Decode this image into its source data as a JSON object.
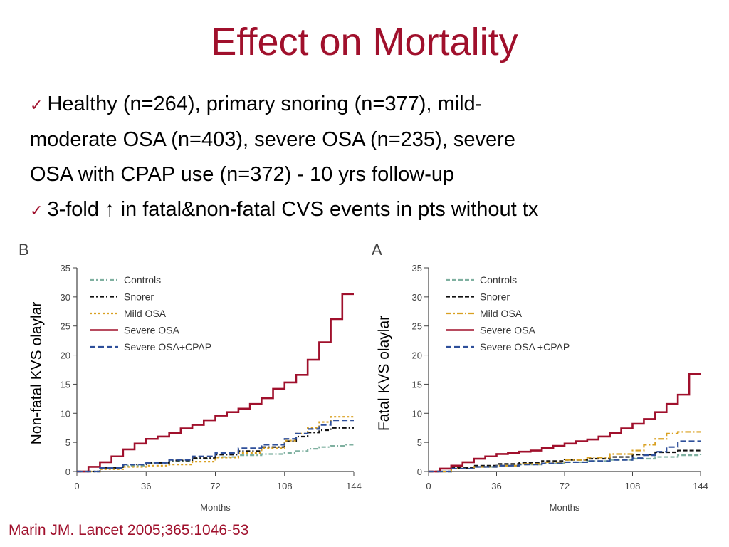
{
  "slide": {
    "title": "Effect on Mortality",
    "bullet1_check": "✓",
    "bullet1_line1": "Healthy (n=264), primary snoring (n=377), mild-",
    "bullet1_line2": "moderate OSA (n=403), severe OSA (n=235), severe",
    "bullet1_line3": "OSA with CPAP use (n=372) - 10 yrs follow-up",
    "bullet2_check": "✓",
    "bullet2_text": "3-fold ↑ in fatal&non-fatal CVS events in pts without tx",
    "citation": "Marin JM. Lancet 2005;365:1046-53"
  },
  "colors": {
    "title": "#a0102c",
    "controls": "#7fb0a0",
    "snorer": "#111111",
    "mild_osa": "#d9a020",
    "severe_osa": "#a0102c",
    "severe_osa_cpap": "#2e4f9a"
  },
  "chart_data": [
    {
      "panel": "B",
      "type": "line",
      "step": true,
      "ylabel": "Non-fatal KVS olaylar",
      "xlabel": "Months",
      "xlim": [
        0,
        144
      ],
      "ylim": [
        0,
        35
      ],
      "xticks": [
        0,
        36,
        72,
        108,
        144
      ],
      "yticks": [
        0,
        5,
        10,
        15,
        20,
        25,
        30,
        35
      ],
      "legend_position": "top-left",
      "series": [
        {
          "name": "Controls",
          "color": "#7fb0a0",
          "dash": "6,3,2,3",
          "points": [
            [
              0,
              0
            ],
            [
              12,
              0.5
            ],
            [
              24,
              1
            ],
            [
              36,
              1.4
            ],
            [
              48,
              1.8
            ],
            [
              60,
              2.2
            ],
            [
              72,
              2.5
            ],
            [
              84,
              2.8
            ],
            [
              96,
              3
            ],
            [
              108,
              3.2
            ],
            [
              114,
              3.5
            ],
            [
              120,
              3.9
            ],
            [
              126,
              4.2
            ],
            [
              132,
              4.4
            ],
            [
              140,
              4.6
            ],
            [
              144,
              4.6
            ]
          ]
        },
        {
          "name": "Snorer",
          "color": "#111111",
          "dash": "6,3,2,3",
          "points": [
            [
              0,
              0
            ],
            [
              12,
              0.6
            ],
            [
              24,
              1.2
            ],
            [
              36,
              1.5
            ],
            [
              48,
              1.9
            ],
            [
              60,
              2.3
            ],
            [
              72,
              2.9
            ],
            [
              84,
              3.5
            ],
            [
              96,
              4.2
            ],
            [
              108,
              5.2
            ],
            [
              114,
              6
            ],
            [
              120,
              6.7
            ],
            [
              126,
              7.1
            ],
            [
              132,
              7.5
            ],
            [
              144,
              7.5
            ]
          ]
        },
        {
          "name": "Mild OSA",
          "color": "#d9a020",
          "dash": "3,3",
          "points": [
            [
              0,
              0
            ],
            [
              12,
              0.4
            ],
            [
              24,
              0.8
            ],
            [
              36,
              1
            ],
            [
              48,
              1.2
            ],
            [
              60,
              1.7
            ],
            [
              72,
              2.4
            ],
            [
              84,
              3.2
            ],
            [
              96,
              4
            ],
            [
              108,
              5.3
            ],
            [
              114,
              6.5
            ],
            [
              120,
              7.5
            ],
            [
              126,
              8.5
            ],
            [
              132,
              9.4
            ],
            [
              144,
              9.4
            ]
          ]
        },
        {
          "name": "Severe OSA",
          "color": "#a0102c",
          "dash": "",
          "points": [
            [
              0,
              0
            ],
            [
              6,
              0.8
            ],
            [
              12,
              1.6
            ],
            [
              18,
              2.6
            ],
            [
              24,
              3.8
            ],
            [
              30,
              4.8
            ],
            [
              36,
              5.6
            ],
            [
              42,
              6
            ],
            [
              48,
              6.6
            ],
            [
              54,
              7.4
            ],
            [
              60,
              8
            ],
            [
              66,
              8.8
            ],
            [
              72,
              9.6
            ],
            [
              78,
              10.2
            ],
            [
              84,
              10.8
            ],
            [
              90,
              11.6
            ],
            [
              96,
              12.6
            ],
            [
              102,
              14.2
            ],
            [
              108,
              15.3
            ],
            [
              114,
              16.6
            ],
            [
              120,
              19.2
            ],
            [
              126,
              22.2
            ],
            [
              132,
              26.2
            ],
            [
              138,
              30.5
            ],
            [
              144,
              30.5
            ]
          ]
        },
        {
          "name": "Severe OSA+CPAP",
          "color": "#2e4f9a",
          "dash": "8,4",
          "points": [
            [
              0,
              0
            ],
            [
              12,
              0.6
            ],
            [
              24,
              1.2
            ],
            [
              36,
              1.5
            ],
            [
              48,
              2
            ],
            [
              60,
              2.6
            ],
            [
              72,
              3.2
            ],
            [
              84,
              4
            ],
            [
              96,
              4.6
            ],
            [
              108,
              5.6
            ],
            [
              114,
              6.5
            ],
            [
              120,
              7.3
            ],
            [
              126,
              8
            ],
            [
              132,
              8.8
            ],
            [
              144,
              8.8
            ]
          ]
        }
      ]
    },
    {
      "panel": "A",
      "type": "line",
      "step": true,
      "ylabel": "Fatal KVS olaylar",
      "xlabel": "Months",
      "xlim": [
        0,
        144
      ],
      "ylim": [
        0,
        35
      ],
      "xticks": [
        0,
        36,
        72,
        108,
        144
      ],
      "yticks": [
        0,
        5,
        10,
        15,
        20,
        25,
        30,
        35
      ],
      "legend_position": "top-left",
      "series": [
        {
          "name": "Controls",
          "color": "#7fb0a0",
          "dash": "6,3",
          "points": [
            [
              0,
              0
            ],
            [
              12,
              0.5
            ],
            [
              24,
              0.8
            ],
            [
              36,
              1
            ],
            [
              48,
              1.2
            ],
            [
              60,
              1.4
            ],
            [
              72,
              1.6
            ],
            [
              84,
              1.8
            ],
            [
              96,
              2
            ],
            [
              108,
              2.2
            ],
            [
              120,
              2.5
            ],
            [
              132,
              2.8
            ],
            [
              144,
              3
            ]
          ]
        },
        {
          "name": "Snorer",
          "color": "#111111",
          "dash": "6,3",
          "points": [
            [
              0,
              0
            ],
            [
              12,
              0.6
            ],
            [
              24,
              1
            ],
            [
              36,
              1.3
            ],
            [
              48,
              1.5
            ],
            [
              60,
              1.8
            ],
            [
              72,
              2
            ],
            [
              84,
              2.2
            ],
            [
              96,
              2.5
            ],
            [
              108,
              2.9
            ],
            [
              120,
              3.3
            ],
            [
              132,
              3.6
            ],
            [
              144,
              3.6
            ]
          ]
        },
        {
          "name": "Mild OSA",
          "color": "#d9a020",
          "dash": "8,3,2,3",
          "points": [
            [
              0,
              0
            ],
            [
              12,
              0.5
            ],
            [
              24,
              0.8
            ],
            [
              36,
              1
            ],
            [
              48,
              1.3
            ],
            [
              60,
              1.6
            ],
            [
              72,
              2
            ],
            [
              84,
              2.4
            ],
            [
              96,
              3
            ],
            [
              108,
              3.6
            ],
            [
              114,
              4.6
            ],
            [
              120,
              5.6
            ],
            [
              126,
              6.5
            ],
            [
              132,
              6.8
            ],
            [
              144,
              6.8
            ]
          ]
        },
        {
          "name": "Severe OSA",
          "color": "#a0102c",
          "dash": "",
          "points": [
            [
              0,
              0
            ],
            [
              6,
              0.5
            ],
            [
              12,
              1
            ],
            [
              18,
              1.6
            ],
            [
              24,
              2.2
            ],
            [
              30,
              2.6
            ],
            [
              36,
              3
            ],
            [
              42,
              3.2
            ],
            [
              48,
              3.4
            ],
            [
              54,
              3.6
            ],
            [
              60,
              4
            ],
            [
              66,
              4.4
            ],
            [
              72,
              4.8
            ],
            [
              78,
              5.2
            ],
            [
              84,
              5.5
            ],
            [
              90,
              6
            ],
            [
              96,
              6.6
            ],
            [
              102,
              7.4
            ],
            [
              108,
              8.2
            ],
            [
              114,
              9
            ],
            [
              120,
              10.2
            ],
            [
              126,
              11.6
            ],
            [
              132,
              13.2
            ],
            [
              138,
              16.8
            ],
            [
              144,
              16.8
            ]
          ]
        },
        {
          "name": "Severe OSA +CPAP",
          "color": "#2e4f9a",
          "dash": "8,4",
          "points": [
            [
              0,
              0
            ],
            [
              12,
              0.5
            ],
            [
              24,
              0.8
            ],
            [
              36,
              1
            ],
            [
              48,
              1.2
            ],
            [
              60,
              1.4
            ],
            [
              72,
              1.6
            ],
            [
              84,
              1.8
            ],
            [
              96,
              2
            ],
            [
              108,
              2.3
            ],
            [
              114,
              2.8
            ],
            [
              120,
              3.4
            ],
            [
              126,
              4.2
            ],
            [
              132,
              5.2
            ],
            [
              144,
              5.2
            ]
          ]
        }
      ]
    }
  ]
}
